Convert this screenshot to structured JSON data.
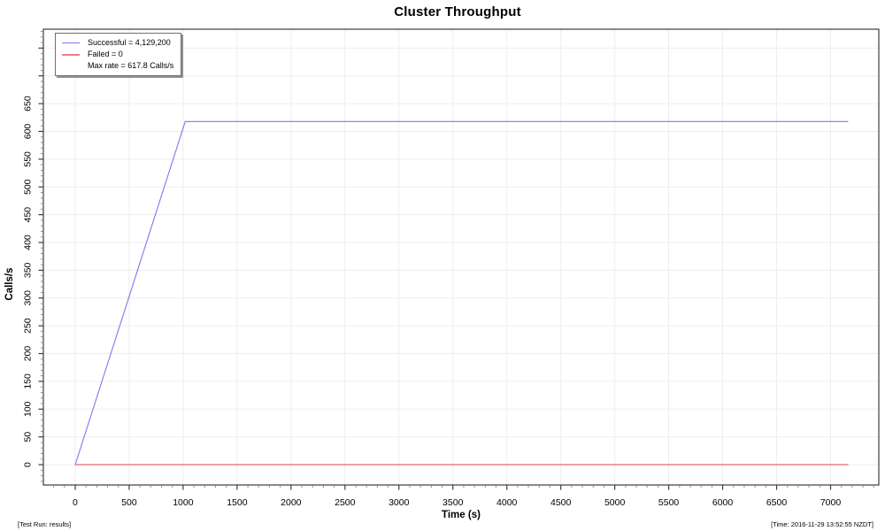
{
  "footer": {
    "left": "[Test Run: results]",
    "right": "[Time: 2016-11-29 13:52:55 NZDT]"
  },
  "legend": {
    "entries": [
      {
        "label": "Successful = 4,129,200",
        "sample": true,
        "color": "#7a7aec",
        "weight": 1.5
      },
      {
        "label": "Failed = 0",
        "sample": true,
        "color": "#f08080",
        "weight": 2.5
      },
      {
        "label": "Max rate = 617.8 Calls/s",
        "sample": false,
        "color": "",
        "weight": 0
      }
    ]
  },
  "chart_data": {
    "type": "line",
    "title": "Cluster Throughput",
    "xlabel": "Time (s)",
    "ylabel": "Calls/s",
    "xlim": [
      -295,
      7447
    ],
    "ylim": [
      -36.6,
      784
    ],
    "x_major_ticks": [
      0,
      500,
      1000,
      1500,
      2000,
      2500,
      3000,
      3500,
      4000,
      4500,
      5000,
      5500,
      6000,
      6500,
      7000
    ],
    "x_major_step": 500,
    "x_minor_step": 100,
    "y_major_ticks": [
      0,
      50,
      100,
      150,
      200,
      250,
      300,
      350,
      400,
      450,
      500,
      550,
      600,
      650
    ],
    "y_unlabeled_major_ticks": [
      700,
      750
    ],
    "y_major_step": 50,
    "y_minor_step": 10,
    "grid": true,
    "legend_position": "top-left",
    "colors": {
      "grid": "#ededed",
      "axis": "#3c3c3c",
      "minor_tick": "#8a8a8a",
      "successful": "#7a7aec",
      "failed": "#f08080"
    },
    "series": [
      {
        "name": "Successful",
        "total": "4,129,200",
        "color": "#7a7aec",
        "width": 1.1,
        "points": [
          [
            0,
            0
          ],
          [
            1020,
            617.8
          ],
          [
            7160,
            617.8
          ]
        ]
      },
      {
        "name": "Failed",
        "total": "0",
        "color": "#f08080",
        "width": 1.6,
        "points": [
          [
            0,
            0
          ],
          [
            7160,
            0
          ]
        ]
      }
    ],
    "max_rate": "617.8 Calls/s"
  }
}
